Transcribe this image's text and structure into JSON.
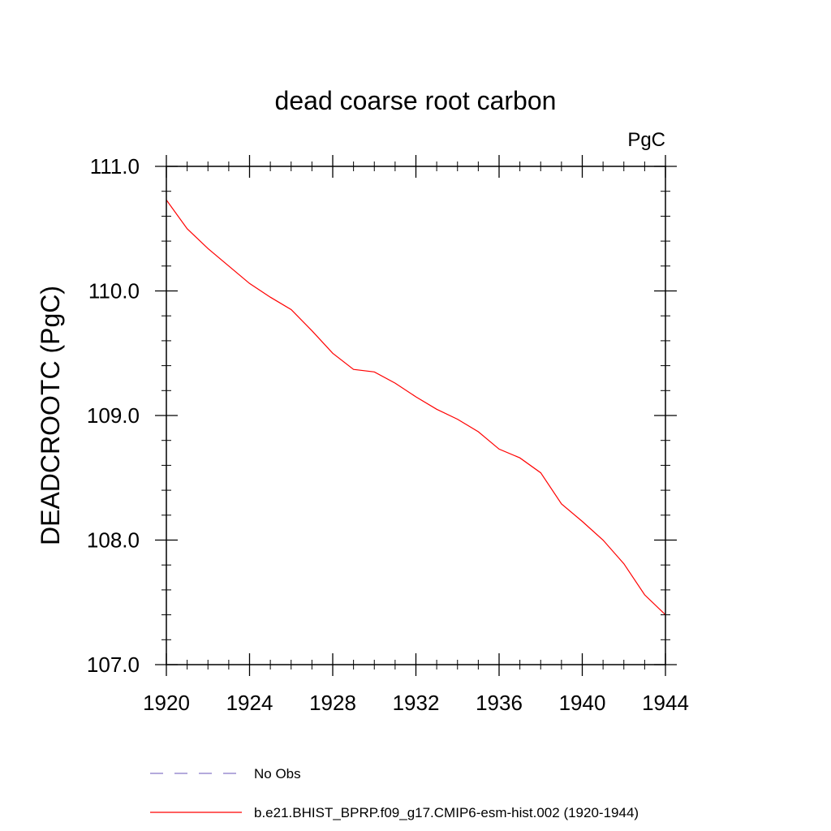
{
  "chart_data": {
    "type": "line",
    "title": "dead coarse root carbon",
    "units_label": "PgC",
    "xlabel": "",
    "ylabel": "DEADCROOTC  (PgC)",
    "xlim": [
      1920,
      1944
    ],
    "ylim": [
      107.0,
      111.0
    ],
    "x_ticks": [
      1920,
      1924,
      1928,
      1932,
      1936,
      1940,
      1944
    ],
    "x_tick_labels": [
      "1920",
      "1924",
      "1928",
      "1932",
      "1936",
      "1940",
      "1944"
    ],
    "y_ticks": [
      107.0,
      108.0,
      109.0,
      110.0,
      111.0
    ],
    "y_tick_labels": [
      "107.0",
      "108.0",
      "109.0",
      "110.0",
      "111.0"
    ],
    "x_minor_step": 1,
    "y_minor_step": 0.2,
    "series": [
      {
        "name": "b.e21.BHIST_BPRP.f09_g17.CMIP6-esm-hist.002 (1920-1944)",
        "color": "#ff0000",
        "style": "solid",
        "x": [
          1920,
          1921,
          1922,
          1923,
          1924,
          1925,
          1926,
          1927,
          1928,
          1929,
          1930,
          1931,
          1932,
          1933,
          1934,
          1935,
          1936,
          1937,
          1938,
          1939,
          1940,
          1941,
          1942,
          1943,
          1944
        ],
        "values": [
          110.73,
          110.5,
          110.34,
          110.2,
          110.06,
          109.95,
          109.85,
          109.68,
          109.5,
          109.37,
          109.35,
          109.26,
          109.15,
          109.05,
          108.97,
          108.87,
          108.73,
          108.66,
          108.54,
          108.29,
          108.15,
          108.0,
          107.81,
          107.56,
          107.4
        ]
      }
    ],
    "legend": [
      {
        "label": "No Obs",
        "color": "#8878c8",
        "style": "dashed"
      },
      {
        "label": "b.e21.BHIST_BPRP.f09_g17.CMIP6-esm-hist.002 (1920-1944)",
        "color": "#ff0000",
        "style": "solid"
      }
    ],
    "legend_position": "bottom",
    "grid": false
  }
}
